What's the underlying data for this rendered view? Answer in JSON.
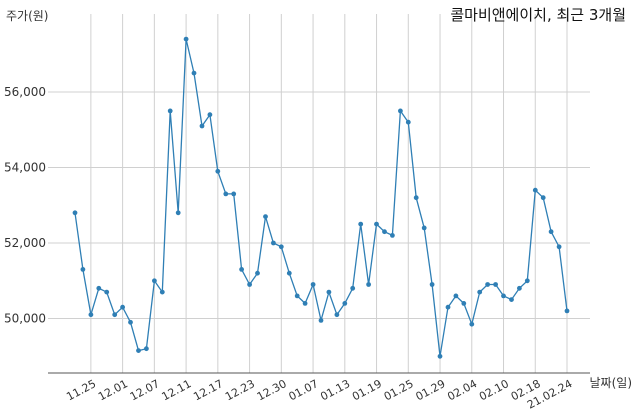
{
  "chart_data": {
    "type": "line",
    "title": "콜마비앤에이치, 최근 3개월",
    "xlabel": "날짜(일)",
    "ylabel": "주가(원)",
    "ylim": [
      48600,
      57600
    ],
    "yticks": [
      50000,
      52000,
      54000,
      56000
    ],
    "ytick_labels": [
      "50,000",
      "52,000",
      "54,000",
      "56,000"
    ],
    "xtick_labels": [
      "11.25",
      "12.01",
      "12.07",
      "12.11",
      "12.17",
      "12.23",
      "12.30",
      "01.07",
      "01.13",
      "01.19",
      "01.25",
      "01.29",
      "02.04",
      "02.10",
      "02.18",
      "21.02.24"
    ],
    "xtick_index": [
      2,
      6,
      10,
      14,
      18,
      22,
      26,
      30,
      34,
      38,
      42,
      46,
      50,
      54,
      58,
      62
    ],
    "grid": true,
    "series": [
      {
        "color": "#2f7fb5",
        "values": [
          52800,
          51300,
          50100,
          50800,
          50700,
          50100,
          50300,
          49900,
          49150,
          49200,
          51000,
          50700,
          55500,
          52800,
          57400,
          56500,
          55100,
          55400,
          53900,
          53300,
          53300,
          51300,
          50900,
          51200,
          52700,
          52000,
          51900,
          51200,
          50600,
          50400,
          50900,
          49950,
          50700,
          50100,
          50400,
          50800,
          52500,
          50900,
          52500,
          52300,
          52200,
          55500,
          55200,
          53200,
          52400,
          50900,
          49000,
          50300,
          50600,
          50400,
          49850,
          50700,
          50900,
          50900,
          50600,
          50500,
          50800,
          51000,
          53400,
          53200,
          52300,
          51900,
          50200
        ]
      }
    ]
  }
}
